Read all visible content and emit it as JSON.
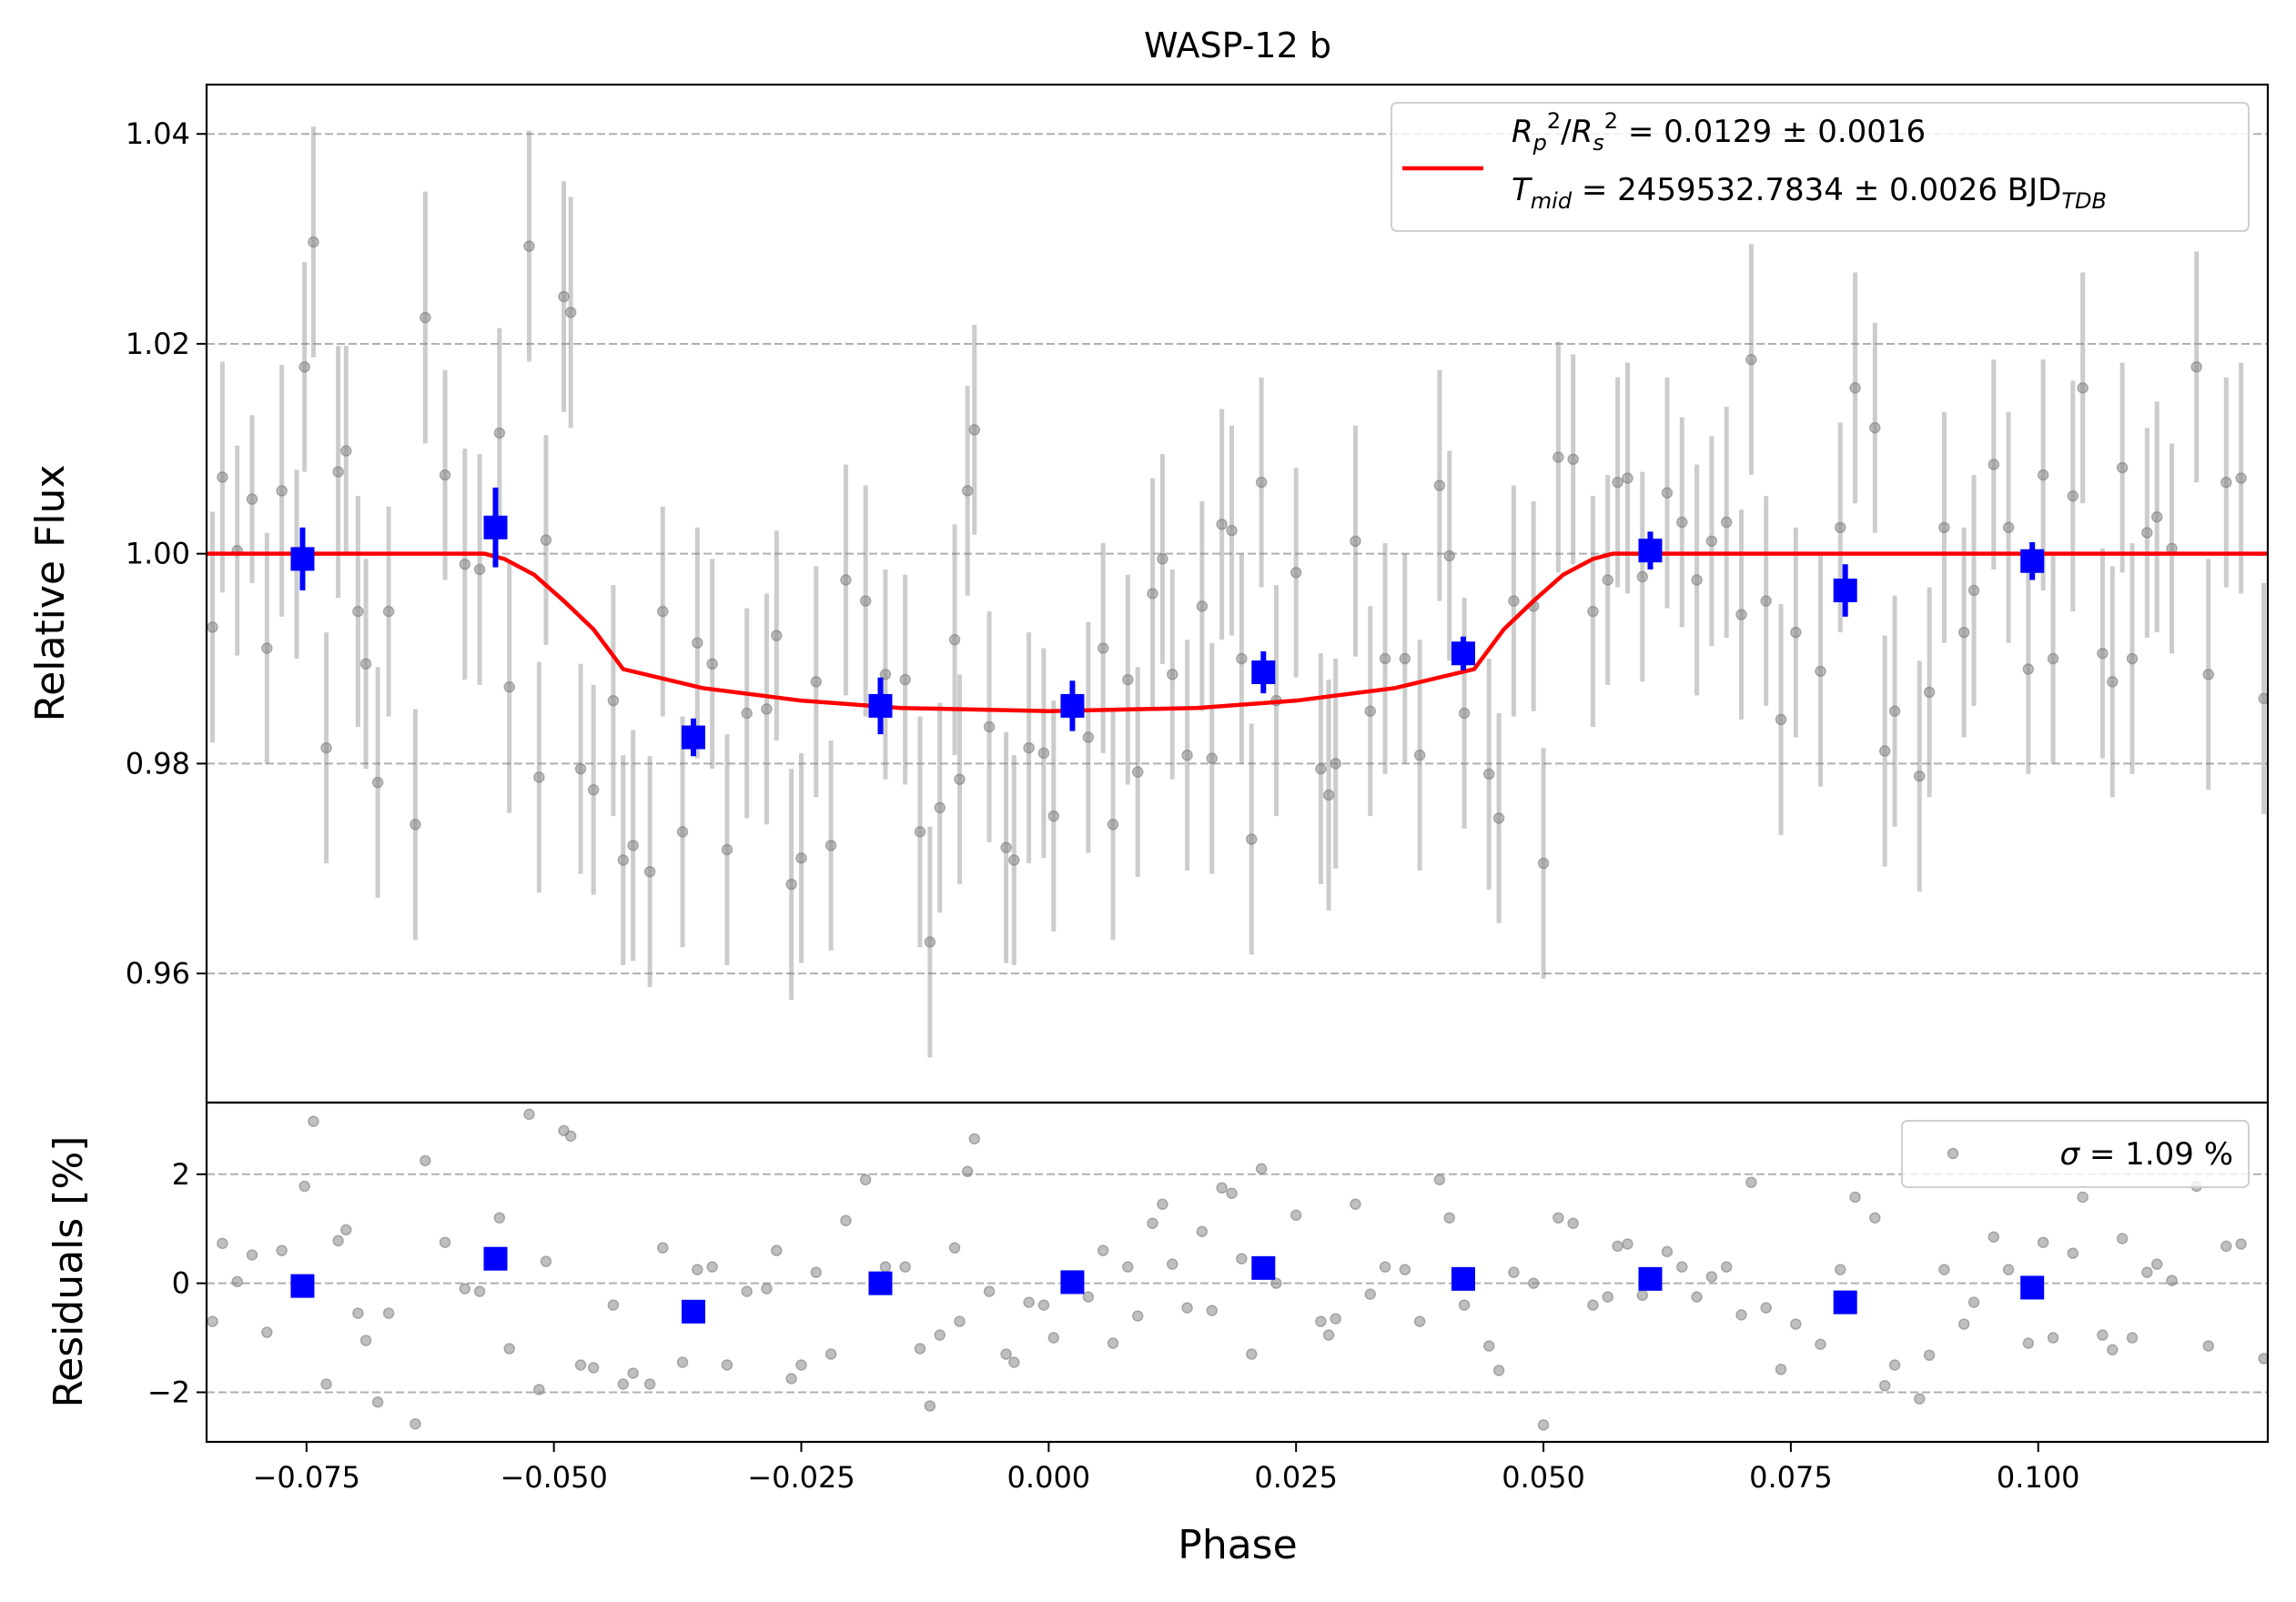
{
  "chart_data": [
    {
      "type": "scatter",
      "title": "WASP-12 b",
      "y_label": "Relative Flux",
      "xlim": [
        -0.0851,
        0.1232
      ],
      "ylim": [
        0.9477,
        1.0447
      ],
      "yticks": [
        0.96,
        0.98,
        {
          "value": 1,
          "label": "1.00"
        },
        1.02,
        1.04
      ],
      "grid": true,
      "legend": "upper right",
      "series": [
        {
          "type": "line",
          "color": "#ff0000",
          "name": [
            [
              {
                "text": "R",
                "italic": true
              },
              {
                "text": "p",
                "sub": true,
                "italic": true
              },
              {
                "text": "2",
                "sup": true
              },
              {
                "text": "/"
              },
              {
                "text": "R",
                "italic": true
              },
              {
                "text": "s",
                "sub": true,
                "italic": true
              },
              {
                "text": "2",
                "sup": true
              },
              {
                "text": " = 0.0129 ± 0.0016"
              }
            ],
            [
              {
                "text": "T",
                "italic": true
              },
              {
                "text": "mid",
                "sub": true,
                "italic": true
              },
              {
                "text": " = 2459532.7834 ± 0.0026 BJD"
              },
              {
                "text": "TDB",
                "sub": true,
                "italic": true
              }
            ]
          ],
          "x": [
            -0.0851,
            -0.057,
            -0.055,
            -0.052,
            -0.049,
            -0.046,
            -0.043,
            -0.035,
            -0.025,
            -0.015,
            0,
            0.015,
            0.025,
            0.035,
            0.043,
            0.046,
            0.049,
            0.052,
            0.055,
            0.057,
            0.1232
          ],
          "values": [
            1,
            1,
            0.9995,
            0.998,
            0.9955,
            0.9928,
            0.989,
            0.9872,
            0.986,
            0.9853,
            0.985,
            0.9853,
            0.986,
            0.9872,
            0.989,
            0.9928,
            0.9955,
            0.998,
            0.9995,
            1,
            1
          ]
        },
        {
          "type": "points",
          "marker": "circle",
          "color": "#808080",
          "x": [
            -0.0845,
            -0.0835,
            -0.082,
            -0.0805,
            -0.079,
            -0.0775,
            -0.076,
            -0.0752,
            -0.0743,
            -0.073,
            -0.0718,
            -0.071,
            -0.0698,
            -0.069,
            -0.0678,
            -0.0667,
            -0.064,
            -0.063,
            -0.061,
            -0.059,
            -0.0575,
            -0.0555,
            -0.0545,
            -0.0525,
            -0.0515,
            -0.0508,
            -0.049,
            -0.0483,
            -0.0473,
            -0.046,
            -0.044,
            -0.043,
            -0.042,
            -0.0403,
            -0.039,
            -0.037,
            -0.0355,
            -0.034,
            -0.0325,
            -0.0305,
            -0.0285,
            -0.0275,
            -0.026,
            -0.025,
            -0.0235,
            -0.022,
            -0.0205,
            -0.0185,
            -0.0165,
            -0.0145,
            -0.013,
            -0.012,
            -0.011,
            -0.0095,
            -0.009,
            -0.0082,
            -0.0075,
            -0.006,
            -0.0043,
            -0.0035,
            -0.002,
            -0.0005,
            0.0005,
            0.004,
            0.0055,
            0.0065,
            0.008,
            0.009,
            0.0105,
            0.0115,
            0.0125,
            0.014,
            0.0155,
            0.0165,
            0.0175,
            0.0185,
            0.0195,
            0.0205,
            0.0215,
            0.023,
            0.025,
            0.0275,
            0.0283,
            0.029,
            0.031,
            0.0325,
            0.034,
            0.036,
            0.0375,
            0.0395,
            0.0405,
            0.042,
            0.0445,
            0.0455,
            0.047,
            0.049,
            0.05,
            0.0515,
            0.053,
            0.055,
            0.0565,
            0.0575,
            0.0585,
            0.06,
            0.0625,
            0.064,
            0.0655,
            0.067,
            0.0685,
            0.07,
            0.071,
            0.0725,
            0.074,
            0.0755,
            0.078,
            0.08,
            0.0815,
            0.0835,
            0.0845,
            0.0855,
            0.088,
            0.089,
            0.0905,
            0.0925,
            0.0935,
            0.0955,
            0.097,
            0.099,
            0.1005,
            0.1015,
            0.1035,
            0.1045,
            0.1065,
            0.1075,
            0.1085,
            0.1095,
            0.111,
            0.112,
            0.1135,
            0.116,
            0.1172,
            0.119,
            0.1205,
            0.1228
          ],
          "values": [
            0.993,
            1.0073,
            1.0003,
            1.0052,
            0.991,
            1.006,
            0.999,
            1.0178,
            1.0297,
            0.9815,
            1.0078,
            1.0098,
            0.9945,
            0.9895,
            0.9782,
            0.9945,
            0.9742,
            1.0225,
            1.0075,
            0.999,
            0.9985,
            1.0115,
            0.9873,
            1.0293,
            0.9787,
            1.0013,
            1.0245,
            1.023,
            0.9795,
            0.9775,
            0.986,
            0.9708,
            0.9722,
            0.9697,
            0.9945,
            0.9735,
            0.9915,
            0.9895,
            0.9718,
            0.9848,
            0.9852,
            0.9922,
            0.9685,
            0.971,
            0.9878,
            0.9722,
            0.9975,
            0.9955,
            0.9885,
            0.988,
            0.9735,
            0.963,
            0.9758,
            0.9918,
            0.9785,
            1.006,
            1.0118,
            0.9835,
            0.972,
            0.9708,
            0.9815,
            0.981,
            0.975,
            0.9825,
            0.991,
            0.9742,
            0.988,
            0.9792,
            0.9962,
            0.9995,
            0.9885,
            0.9808,
            0.995,
            0.9805,
            1.0028,
            1.0022,
            0.99,
            0.9728,
            1.0068,
            0.986,
            0.9982,
            0.9795,
            0.977,
            0.98,
            1.0012,
            0.985,
            0.99,
            0.99,
            0.9808,
            1.0065,
            0.9998,
            0.9848,
            0.979,
            0.9748,
            0.9955,
            0.995,
            0.9705,
            1.0092,
            1.009,
            0.9945,
            0.9975,
            1.0068,
            1.0072,
            0.9978,
            1.0058,
            1.003,
            0.9975,
            1.0012,
            1.003,
            0.9942,
            1.0185,
            0.9955,
            0.9842,
            0.9925,
            0.9888,
            1.0025,
            1.0158,
            1.012,
            0.9812,
            0.985,
            0.9788,
            0.9868,
            1.0025,
            0.9925,
            0.9965,
            1.0085,
            1.0025,
            0.989,
            1.0075,
            0.99,
            1.0055,
            1.0158,
            0.9905,
            0.9878,
            1.0082,
            0.99,
            1.002,
            1.0035,
            1.0005,
            1.0178,
            0.9885,
            1.0068,
            1.0072,
            0.9862
          ],
          "errors": [
            0.011,
            0.011,
            0.01,
            0.008,
            0.011,
            0.012,
            0.009,
            0.01,
            0.011,
            0.011,
            0.012,
            0.01,
            0.011,
            0.01,
            0.011,
            0.01,
            0.011,
            0.012,
            0.01,
            0.011,
            0.011,
            0.01,
            0.012,
            0.011,
            0.011,
            0.01,
            0.011,
            0.011,
            0.01,
            0.01,
            0.011,
            0.01,
            0.011,
            0.011,
            0.01,
            0.011,
            0.011,
            0.01,
            0.011,
            0.01,
            0.011,
            0.01,
            0.011,
            0.01,
            0.011,
            0.01,
            0.011,
            0.011,
            0.01,
            0.01,
            0.011,
            0.011,
            0.01,
            0.011,
            0.01,
            0.01,
            0.01,
            0.011,
            0.011,
            0.01,
            0.011,
            0.01,
            0.011,
            0.011,
            0.01,
            0.011,
            0.01,
            0.01,
            0.011,
            0.01,
            0.01,
            0.011,
            0.01,
            0.011,
            0.011,
            0.01,
            0.01,
            0.011,
            0.01,
            0.011,
            0.01,
            0.011,
            0.011,
            0.01,
            0.011,
            0.01,
            0.011,
            0.01,
            0.011,
            0.011,
            0.01,
            0.011,
            0.011,
            0.01,
            0.011,
            0.01,
            0.011,
            0.011,
            0.01,
            0.011,
            0.01,
            0.01,
            0.011,
            0.01,
            0.011,
            0.01,
            0.011,
            0.01,
            0.011,
            0.01,
            0.011,
            0.01,
            0.011,
            0.01,
            0.011,
            0.01,
            0.011,
            0.01,
            0.011,
            0.011,
            0.011,
            0.01,
            0.011,
            0.01,
            0.011,
            0.01,
            0.011,
            0.01,
            0.011,
            0.01,
            0.011,
            0.011,
            0.01,
            0.011,
            0.01,
            0.011,
            0.01,
            0.011,
            0.01,
            0.011,
            0.011,
            0.01,
            0.011,
            0.011
          ]
        },
        {
          "type": "points",
          "marker": "square",
          "color": "#0000ff",
          "x": [
            -0.0754,
            -0.0559,
            -0.0359,
            -0.017,
            0.0024,
            0.0217,
            0.0419,
            0.0608,
            0.0805,
            0.0994
          ],
          "values": [
            0.9995,
            1.0025,
            0.9825,
            0.9855,
            0.9855,
            0.9887,
            0.9905,
            1.0003,
            0.9965,
            0.9993
          ],
          "errors": [
            0.003,
            0.0038,
            0.0018,
            0.0027,
            0.0024,
            0.002,
            0.0016,
            0.0018,
            0.0025,
            0.0018
          ]
        }
      ]
    },
    {
      "type": "scatter",
      "x_label": "Phase",
      "y_label": "Residuals [%]",
      "xlim": [
        -0.0851,
        0.1232
      ],
      "ylim": [
        -2.91,
        3.315
      ],
      "xticks": [
        {
          "value": -0.075,
          "label": "−0.075"
        },
        {
          "value": -0.05,
          "label": "−0.050"
        },
        {
          "value": -0.025,
          "label": "−0.025"
        },
        {
          "value": 0,
          "label": "0.000"
        },
        0.025,
        {
          "value": 0.05,
          "label": "0.050"
        },
        0.075,
        {
          "value": 0.1,
          "label": "0.100"
        }
      ],
      "yticks": [
        {
          "value": -2,
          "label": "−2"
        },
        0,
        2
      ],
      "grid": true,
      "legend": "upper right",
      "series": [
        {
          "type": "points",
          "marker": "circle",
          "color": "#808080",
          "name": [
            [
              {
                "text": "σ",
                "italic": true
              },
              {
                "text": " = 1.09 %"
              }
            ]
          ],
          "x": [
            -0.0845,
            -0.0835,
            -0.082,
            -0.0805,
            -0.079,
            -0.0775,
            -0.076,
            -0.0752,
            -0.0743,
            -0.073,
            -0.0718,
            -0.071,
            -0.0698,
            -0.069,
            -0.0678,
            -0.0667,
            -0.064,
            -0.063,
            -0.061,
            -0.059,
            -0.0575,
            -0.0555,
            -0.0545,
            -0.0525,
            -0.0515,
            -0.0508,
            -0.049,
            -0.0483,
            -0.0473,
            -0.046,
            -0.044,
            -0.043,
            -0.042,
            -0.0403,
            -0.039,
            -0.037,
            -0.0355,
            -0.034,
            -0.0325,
            -0.0305,
            -0.0285,
            -0.0275,
            -0.026,
            -0.025,
            -0.0235,
            -0.022,
            -0.0205,
            -0.0185,
            -0.0165,
            -0.0145,
            -0.013,
            -0.012,
            -0.011,
            -0.0095,
            -0.009,
            -0.0082,
            -0.0075,
            -0.006,
            -0.0043,
            -0.0035,
            -0.002,
            -0.0005,
            0.0005,
            0.004,
            0.0055,
            0.0065,
            0.008,
            0.009,
            0.0105,
            0.0115,
            0.0125,
            0.014,
            0.0155,
            0.0165,
            0.0175,
            0.0185,
            0.0195,
            0.0205,
            0.0215,
            0.023,
            0.025,
            0.0275,
            0.0283,
            0.029,
            0.031,
            0.0325,
            0.034,
            0.036,
            0.0375,
            0.0395,
            0.0405,
            0.042,
            0.0445,
            0.0455,
            0.047,
            0.049,
            0.05,
            0.0515,
            0.053,
            0.055,
            0.0565,
            0.0575,
            0.0585,
            0.06,
            0.0625,
            0.064,
            0.0655,
            0.067,
            0.0685,
            0.07,
            0.071,
            0.0725,
            0.074,
            0.0755,
            0.078,
            0.08,
            0.0815,
            0.0835,
            0.0845,
            0.0855,
            0.088,
            0.089,
            0.0905,
            0.0925,
            0.0935,
            0.0955,
            0.097,
            0.099,
            0.1005,
            0.1015,
            0.1035,
            0.1045,
            0.1065,
            0.1075,
            0.1085,
            0.1095,
            0.111,
            0.112,
            0.1135,
            0.116,
            0.1172,
            0.119,
            0.1205,
            0.1228
          ],
          "values": [
            -0.7,
            0.73,
            0.03,
            0.52,
            -0.9,
            0.6,
            -0.1,
            1.78,
            2.97,
            -1.85,
            0.78,
            0.98,
            -0.55,
            -1.05,
            -2.18,
            -0.55,
            -2.58,
            2.25,
            0.75,
            -0.1,
            -0.15,
            1.2,
            -1.2,
            3.1,
            -1.95,
            0.4,
            2.8,
            2.7,
            -1.5,
            -1.55,
            -0.4,
            -1.85,
            -1.65,
            -1.85,
            0.65,
            -1.45,
            0.25,
            0.3,
            -1.5,
            -0.15,
            -0.1,
            0.6,
            -1.75,
            -1.5,
            0.2,
            -1.3,
            1.15,
            1.9,
            0.3,
            0.3,
            -1.2,
            -2.25,
            -0.95,
            0.65,
            -0.7,
            2.05,
            2.65,
            -0.15,
            -1.3,
            -1.45,
            -0.35,
            -0.4,
            -1.0,
            -0.25,
            0.6,
            -1.1,
            0.3,
            -0.6,
            1.1,
            1.45,
            0.35,
            -0.45,
            0.95,
            -0.5,
            1.75,
            1.65,
            0.45,
            -1.3,
            2.1,
            0.0,
            1.25,
            -0.7,
            -0.95,
            -0.65,
            1.45,
            -0.2,
            0.3,
            0.25,
            -0.7,
            1.9,
            1.2,
            -0.4,
            -1.15,
            -1.6,
            0.2,
            0.0,
            -2.6,
            1.2,
            1.1,
            -0.4,
            -0.25,
            0.68,
            0.72,
            -0.22,
            0.58,
            0.3,
            -0.25,
            0.12,
            0.3,
            -0.58,
            1.85,
            -0.45,
            -1.58,
            -0.75,
            -1.12,
            0.25,
            1.58,
            1.2,
            -1.88,
            -1.5,
            -2.12,
            -1.32,
            0.25,
            -0.75,
            -0.35,
            0.85,
            0.25,
            -1.1,
            0.75,
            -1.0,
            0.55,
            1.58,
            -0.95,
            -1.22,
            0.82,
            -1.0,
            0.2,
            0.35,
            0.05,
            1.78,
            -1.15,
            0.68,
            0.72,
            -1.38
          ]
        },
        {
          "type": "points",
          "marker": "square",
          "color": "#0000ff",
          "x": [
            -0.0754,
            -0.0559,
            -0.0359,
            -0.017,
            0.0024,
            0.0217,
            0.0419,
            0.0608,
            0.0805,
            0.0994
          ],
          "values": [
            -0.05,
            0.45,
            -0.52,
            0.0,
            0.02,
            0.28,
            0.08,
            0.08,
            -0.35,
            -0.08
          ]
        }
      ]
    }
  ]
}
